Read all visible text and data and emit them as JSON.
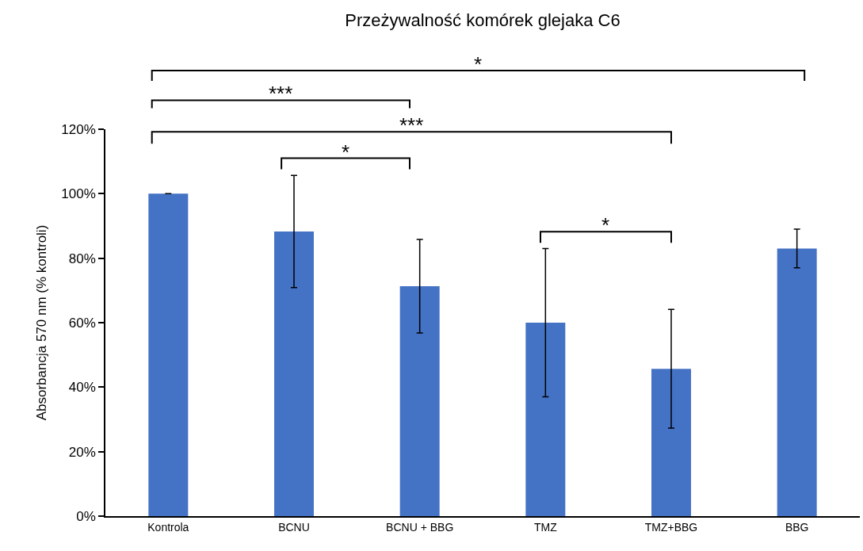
{
  "chart_data": {
    "type": "bar",
    "title": "Przeżywalność komórek glejaka C6",
    "ylabel": "Absorbancja 570 nm (% kontroli)",
    "categories": [
      "Kontrola",
      "BCNU",
      "BCNU + BBG",
      "TMZ",
      "TMZ+BBG",
      "BBG"
    ],
    "values": [
      100,
      88.3,
      71.3,
      60.0,
      45.7,
      83.0
    ],
    "color": "#4472c4",
    "errors": [
      0,
      17.4,
      14.5,
      23,
      18.4,
      6
    ],
    "ylim": [
      0,
      120
    ],
    "yticks": [
      {
        "value": 0,
        "label": "0%"
      },
      {
        "value": 20,
        "label": "20%"
      },
      {
        "value": 40,
        "label": "40%"
      },
      {
        "value": 60,
        "label": "60%"
      },
      {
        "value": 80,
        "label": "80%"
      },
      {
        "value": 100,
        "label": "100%"
      },
      {
        "value": 120,
        "label": "120%"
      }
    ],
    "annotations": [
      "*",
      "***",
      "***",
      "*",
      "*"
    ]
  }
}
